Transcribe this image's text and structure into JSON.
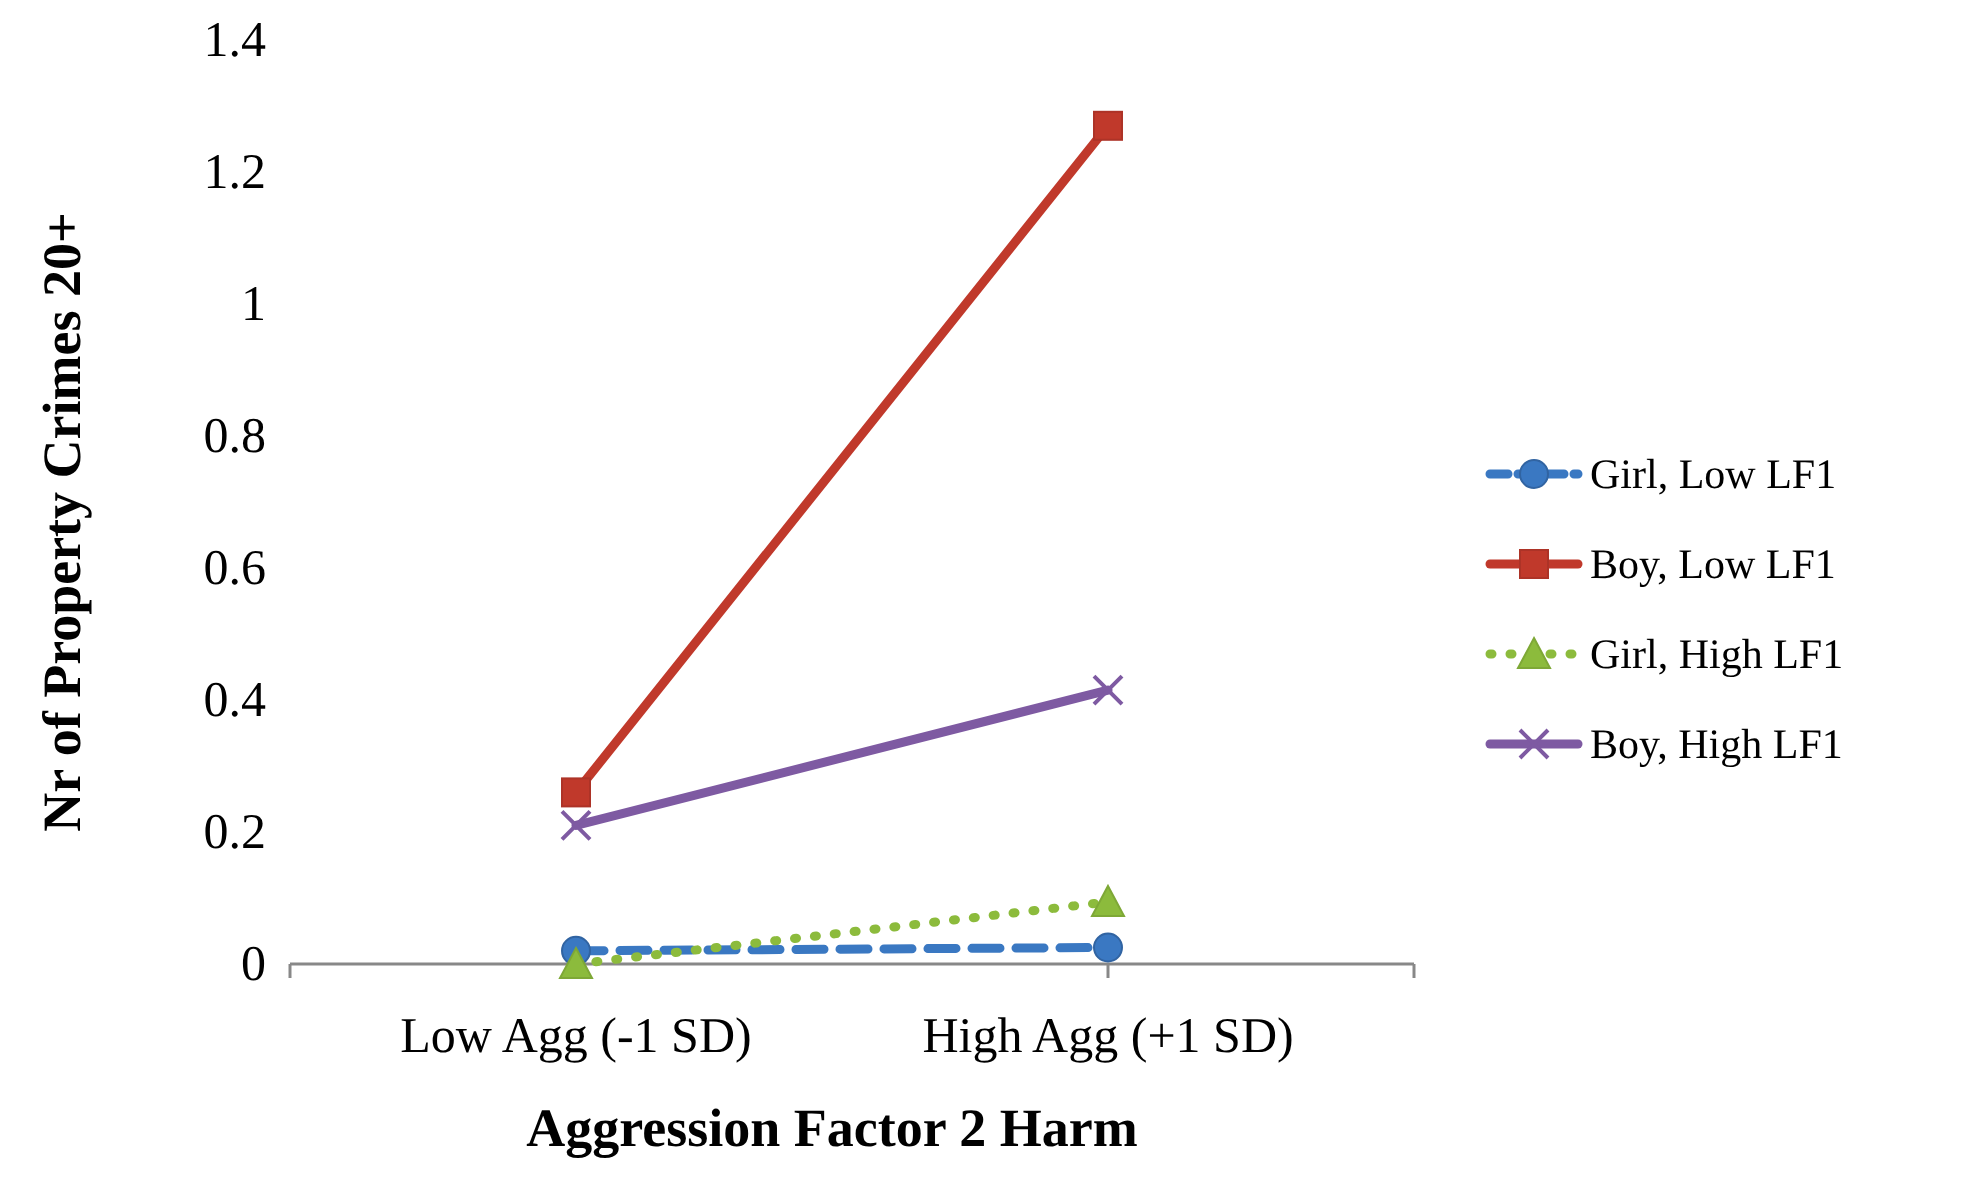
{
  "chart_data": {
    "type": "line",
    "xlabel": "Aggression Factor 2 Harm",
    "ylabel": "Nr of Property Crimes 20+",
    "categories": [
      "Low Agg (-1 SD)",
      "High Agg (+1 SD)"
    ],
    "ylim": [
      0,
      1.4
    ],
    "yticks": [
      0,
      0.2,
      0.4,
      0.6,
      0.8,
      1,
      1.2,
      1.4
    ],
    "grid": false,
    "legend": "right",
    "series": [
      {
        "name": "Girl, Low LF1",
        "color": "#3a78c2",
        "values": [
          0.02,
          0.025
        ],
        "marker": "circle",
        "line_style": "dashed"
      },
      {
        "name": "Boy, Low LF1",
        "color": "#c0392b",
        "values": [
          0.26,
          1.27
        ],
        "marker": "square",
        "line_style": "solid"
      },
      {
        "name": "Girl, High LF1",
        "color": "#8cbb3c",
        "values": [
          0,
          0.094
        ],
        "marker": "triangle",
        "line_style": "dotted"
      },
      {
        "name": "Boy, High LF1",
        "color": "#7e5aa2",
        "values": [
          0.21,
          0.415
        ],
        "marker": "cross",
        "line_style": "solid"
      }
    ]
  }
}
